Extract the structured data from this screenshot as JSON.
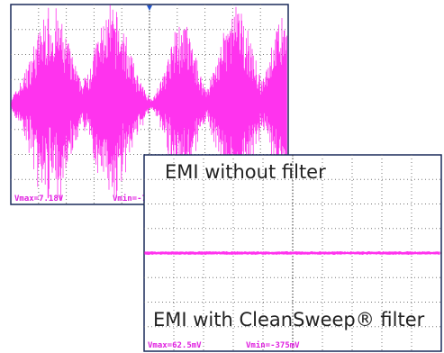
{
  "panels": [
    {
      "caption": "EMI without filter",
      "vmax": "Vmax=7.18V",
      "vmin": "Vmin=-7.87V"
    },
    {
      "caption": "EMI with CleanSweep® filter",
      "vmax": "Vmax=62.5mV",
      "vmin": "Vmin=-375mV"
    }
  ]
}
